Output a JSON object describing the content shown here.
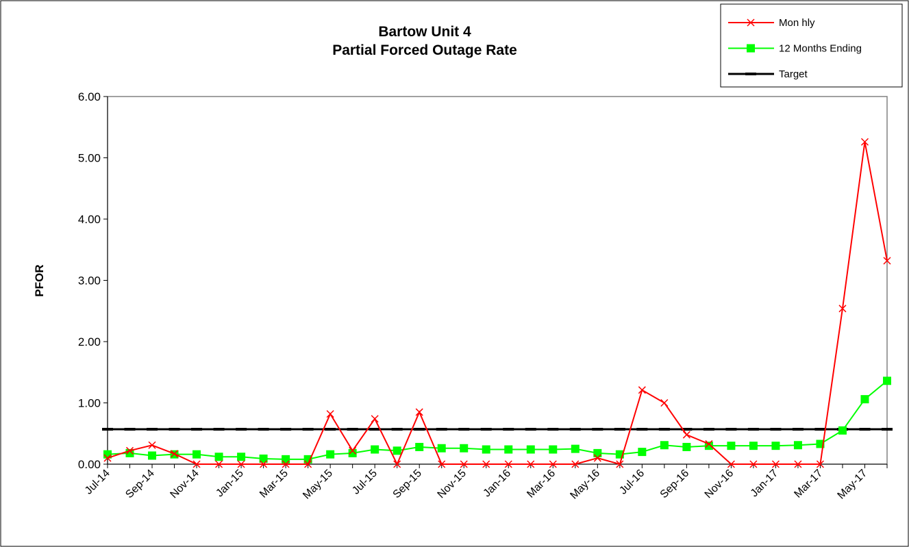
{
  "chart_data": {
    "type": "line",
    "title": "Bartow Unit 4",
    "subtitle": "Partial Forced Outage Rate",
    "y_label": "PFOR",
    "categories": [
      "Jul-14",
      null,
      "Sep-14",
      null,
      "Nov-14",
      null,
      "Jan-15",
      null,
      "Mar-15",
      null,
      "May-15",
      null,
      "Jul-15",
      null,
      "Sep-15",
      null,
      "Nov-15",
      null,
      "Jan-16",
      null,
      "Mar-16",
      null,
      "May-16",
      null,
      "Jul-16",
      null,
      "Sep-16",
      null,
      "Nov-16",
      null,
      "Jan-17",
      null,
      "Mar-17",
      null,
      "May-17",
      null
    ],
    "series": [
      {
        "name": "Mon hly",
        "color": "#ff0000",
        "marker": "x",
        "values": [
          0.1,
          0.22,
          0.31,
          0.17,
          0,
          0,
          0,
          0,
          0,
          0,
          0.82,
          0.22,
          0.74,
          0,
          0.85,
          0,
          0,
          0,
          0,
          0,
          0,
          0,
          0.1,
          0,
          1.21,
          1.0,
          0.48,
          0.33,
          0,
          0,
          0,
          0,
          0,
          2.54,
          5.26,
          3.32
        ]
      },
      {
        "name": "12 Months Ending",
        "color": "#00ff00",
        "marker": "square",
        "values": [
          0.16,
          0.18,
          0.14,
          0.16,
          0.16,
          0.12,
          0.12,
          0.09,
          0.08,
          0.08,
          0.16,
          0.18,
          0.24,
          0.22,
          0.28,
          0.26,
          0.26,
          0.24,
          0.24,
          0.24,
          0.24,
          0.25,
          0.18,
          0.16,
          0.2,
          0.31,
          0.28,
          0.3,
          0.3,
          0.3,
          0.3,
          0.31,
          0.33,
          0.55,
          1.06,
          1.36
        ]
      },
      {
        "name": "Target",
        "color": "#000000",
        "marker": "dash",
        "values": [
          0.57,
          0.57,
          0.57,
          0.57,
          0.57,
          0.57,
          0.57,
          0.57,
          0.57,
          0.57,
          0.57,
          0.57,
          0.57,
          0.57,
          0.57,
          0.57,
          0.57,
          0.57,
          0.57,
          0.57,
          0.57,
          0.57,
          0.57,
          0.57,
          0.57,
          0.57,
          0.57,
          0.57,
          0.57,
          0.57,
          0.57,
          0.57,
          0.57,
          0.57,
          0.57,
          0.57
        ]
      }
    ],
    "ylim": [
      0,
      6
    ],
    "yticks": [
      {
        "value": 0,
        "label": "0.00"
      },
      {
        "value": 1,
        "label": "1.00"
      },
      {
        "value": 2,
        "label": "2.00"
      },
      {
        "value": 3,
        "label": "3.00"
      },
      {
        "value": 4,
        "label": "4.00"
      },
      {
        "value": 5,
        "label": "5.00"
      },
      {
        "value": 6,
        "label": "6.00"
      }
    ],
    "grid": false,
    "legend": "top-right"
  }
}
